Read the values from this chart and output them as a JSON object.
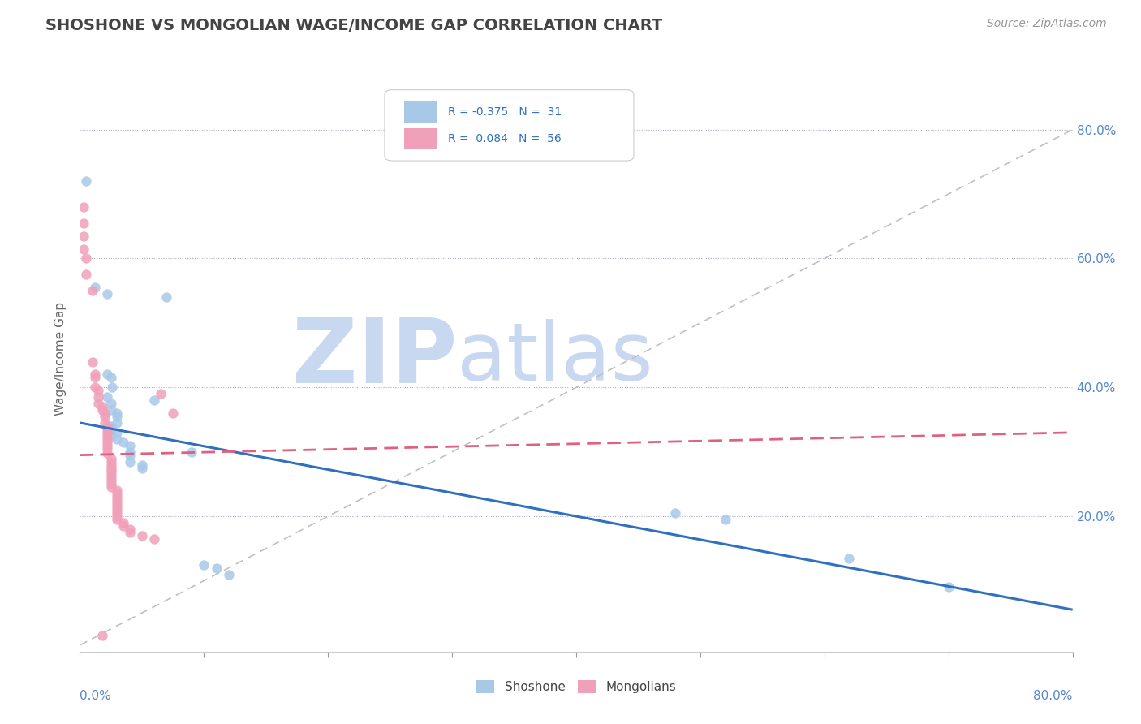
{
  "title": "SHOSHONE VS MONGOLIAN WAGE/INCOME GAP CORRELATION CHART",
  "source": "Source: ZipAtlas.com",
  "ylabel": "Wage/Income Gap",
  "xlim": [
    0.0,
    0.8
  ],
  "ylim": [
    -0.01,
    0.9
  ],
  "ytick_labels": [
    "20.0%",
    "40.0%",
    "60.0%",
    "80.0%"
  ],
  "ytick_values": [
    0.2,
    0.4,
    0.6,
    0.8
  ],
  "shoshone_color": "#A8C8E8",
  "mongolian_color": "#F0A0B8",
  "shoshone_line_color": "#3070C0",
  "mongolian_line_color": "#E06080",
  "diagonal_color": "#C0C0C0",
  "watermark_zip": "ZIP",
  "watermark_atlas": "atlas",
  "watermark_color_zip": "#C8D8F0",
  "watermark_color_atlas": "#C8D8F0",
  "shoshone_points": [
    [
      0.005,
      0.72
    ],
    [
      0.012,
      0.555
    ],
    [
      0.022,
      0.545
    ],
    [
      0.022,
      0.42
    ],
    [
      0.025,
      0.415
    ],
    [
      0.026,
      0.4
    ],
    [
      0.022,
      0.385
    ],
    [
      0.025,
      0.375
    ],
    [
      0.025,
      0.365
    ],
    [
      0.03,
      0.36
    ],
    [
      0.03,
      0.355
    ],
    [
      0.03,
      0.345
    ],
    [
      0.025,
      0.34
    ],
    [
      0.025,
      0.335
    ],
    [
      0.03,
      0.33
    ],
    [
      0.025,
      0.325
    ],
    [
      0.03,
      0.32
    ],
    [
      0.035,
      0.315
    ],
    [
      0.04,
      0.31
    ],
    [
      0.04,
      0.3
    ],
    [
      0.04,
      0.295
    ],
    [
      0.04,
      0.285
    ],
    [
      0.05,
      0.28
    ],
    [
      0.05,
      0.275
    ],
    [
      0.06,
      0.38
    ],
    [
      0.07,
      0.54
    ],
    [
      0.09,
      0.3
    ],
    [
      0.1,
      0.125
    ],
    [
      0.11,
      0.12
    ],
    [
      0.12,
      0.11
    ],
    [
      0.48,
      0.205
    ],
    [
      0.52,
      0.195
    ],
    [
      0.62,
      0.135
    ],
    [
      0.7,
      0.09
    ]
  ],
  "mongolian_points": [
    [
      0.003,
      0.68
    ],
    [
      0.003,
      0.655
    ],
    [
      0.003,
      0.635
    ],
    [
      0.003,
      0.615
    ],
    [
      0.005,
      0.6
    ],
    [
      0.005,
      0.575
    ],
    [
      0.01,
      0.55
    ],
    [
      0.01,
      0.44
    ],
    [
      0.012,
      0.42
    ],
    [
      0.012,
      0.415
    ],
    [
      0.012,
      0.4
    ],
    [
      0.015,
      0.395
    ],
    [
      0.015,
      0.385
    ],
    [
      0.015,
      0.375
    ],
    [
      0.018,
      0.37
    ],
    [
      0.018,
      0.365
    ],
    [
      0.02,
      0.36
    ],
    [
      0.02,
      0.355
    ],
    [
      0.02,
      0.345
    ],
    [
      0.022,
      0.34
    ],
    [
      0.022,
      0.335
    ],
    [
      0.022,
      0.33
    ],
    [
      0.022,
      0.325
    ],
    [
      0.022,
      0.32
    ],
    [
      0.022,
      0.315
    ],
    [
      0.022,
      0.31
    ],
    [
      0.022,
      0.305
    ],
    [
      0.022,
      0.298
    ],
    [
      0.025,
      0.29
    ],
    [
      0.025,
      0.285
    ],
    [
      0.025,
      0.28
    ],
    [
      0.025,
      0.275
    ],
    [
      0.025,
      0.27
    ],
    [
      0.025,
      0.265
    ],
    [
      0.025,
      0.26
    ],
    [
      0.025,
      0.255
    ],
    [
      0.025,
      0.25
    ],
    [
      0.025,
      0.245
    ],
    [
      0.03,
      0.24
    ],
    [
      0.03,
      0.235
    ],
    [
      0.03,
      0.23
    ],
    [
      0.03,
      0.225
    ],
    [
      0.03,
      0.22
    ],
    [
      0.03,
      0.215
    ],
    [
      0.03,
      0.21
    ],
    [
      0.03,
      0.205
    ],
    [
      0.03,
      0.2
    ],
    [
      0.03,
      0.195
    ],
    [
      0.035,
      0.19
    ],
    [
      0.035,
      0.185
    ],
    [
      0.04,
      0.18
    ],
    [
      0.04,
      0.175
    ],
    [
      0.05,
      0.17
    ],
    [
      0.06,
      0.165
    ],
    [
      0.065,
      0.39
    ],
    [
      0.075,
      0.36
    ],
    [
      0.018,
      0.015
    ]
  ],
  "shoshone_line_x": [
    0.0,
    0.8
  ],
  "shoshone_line_y": [
    0.345,
    0.055
  ],
  "mongolian_line_x": [
    0.0,
    0.8
  ],
  "mongolian_line_y": [
    0.295,
    0.33
  ]
}
